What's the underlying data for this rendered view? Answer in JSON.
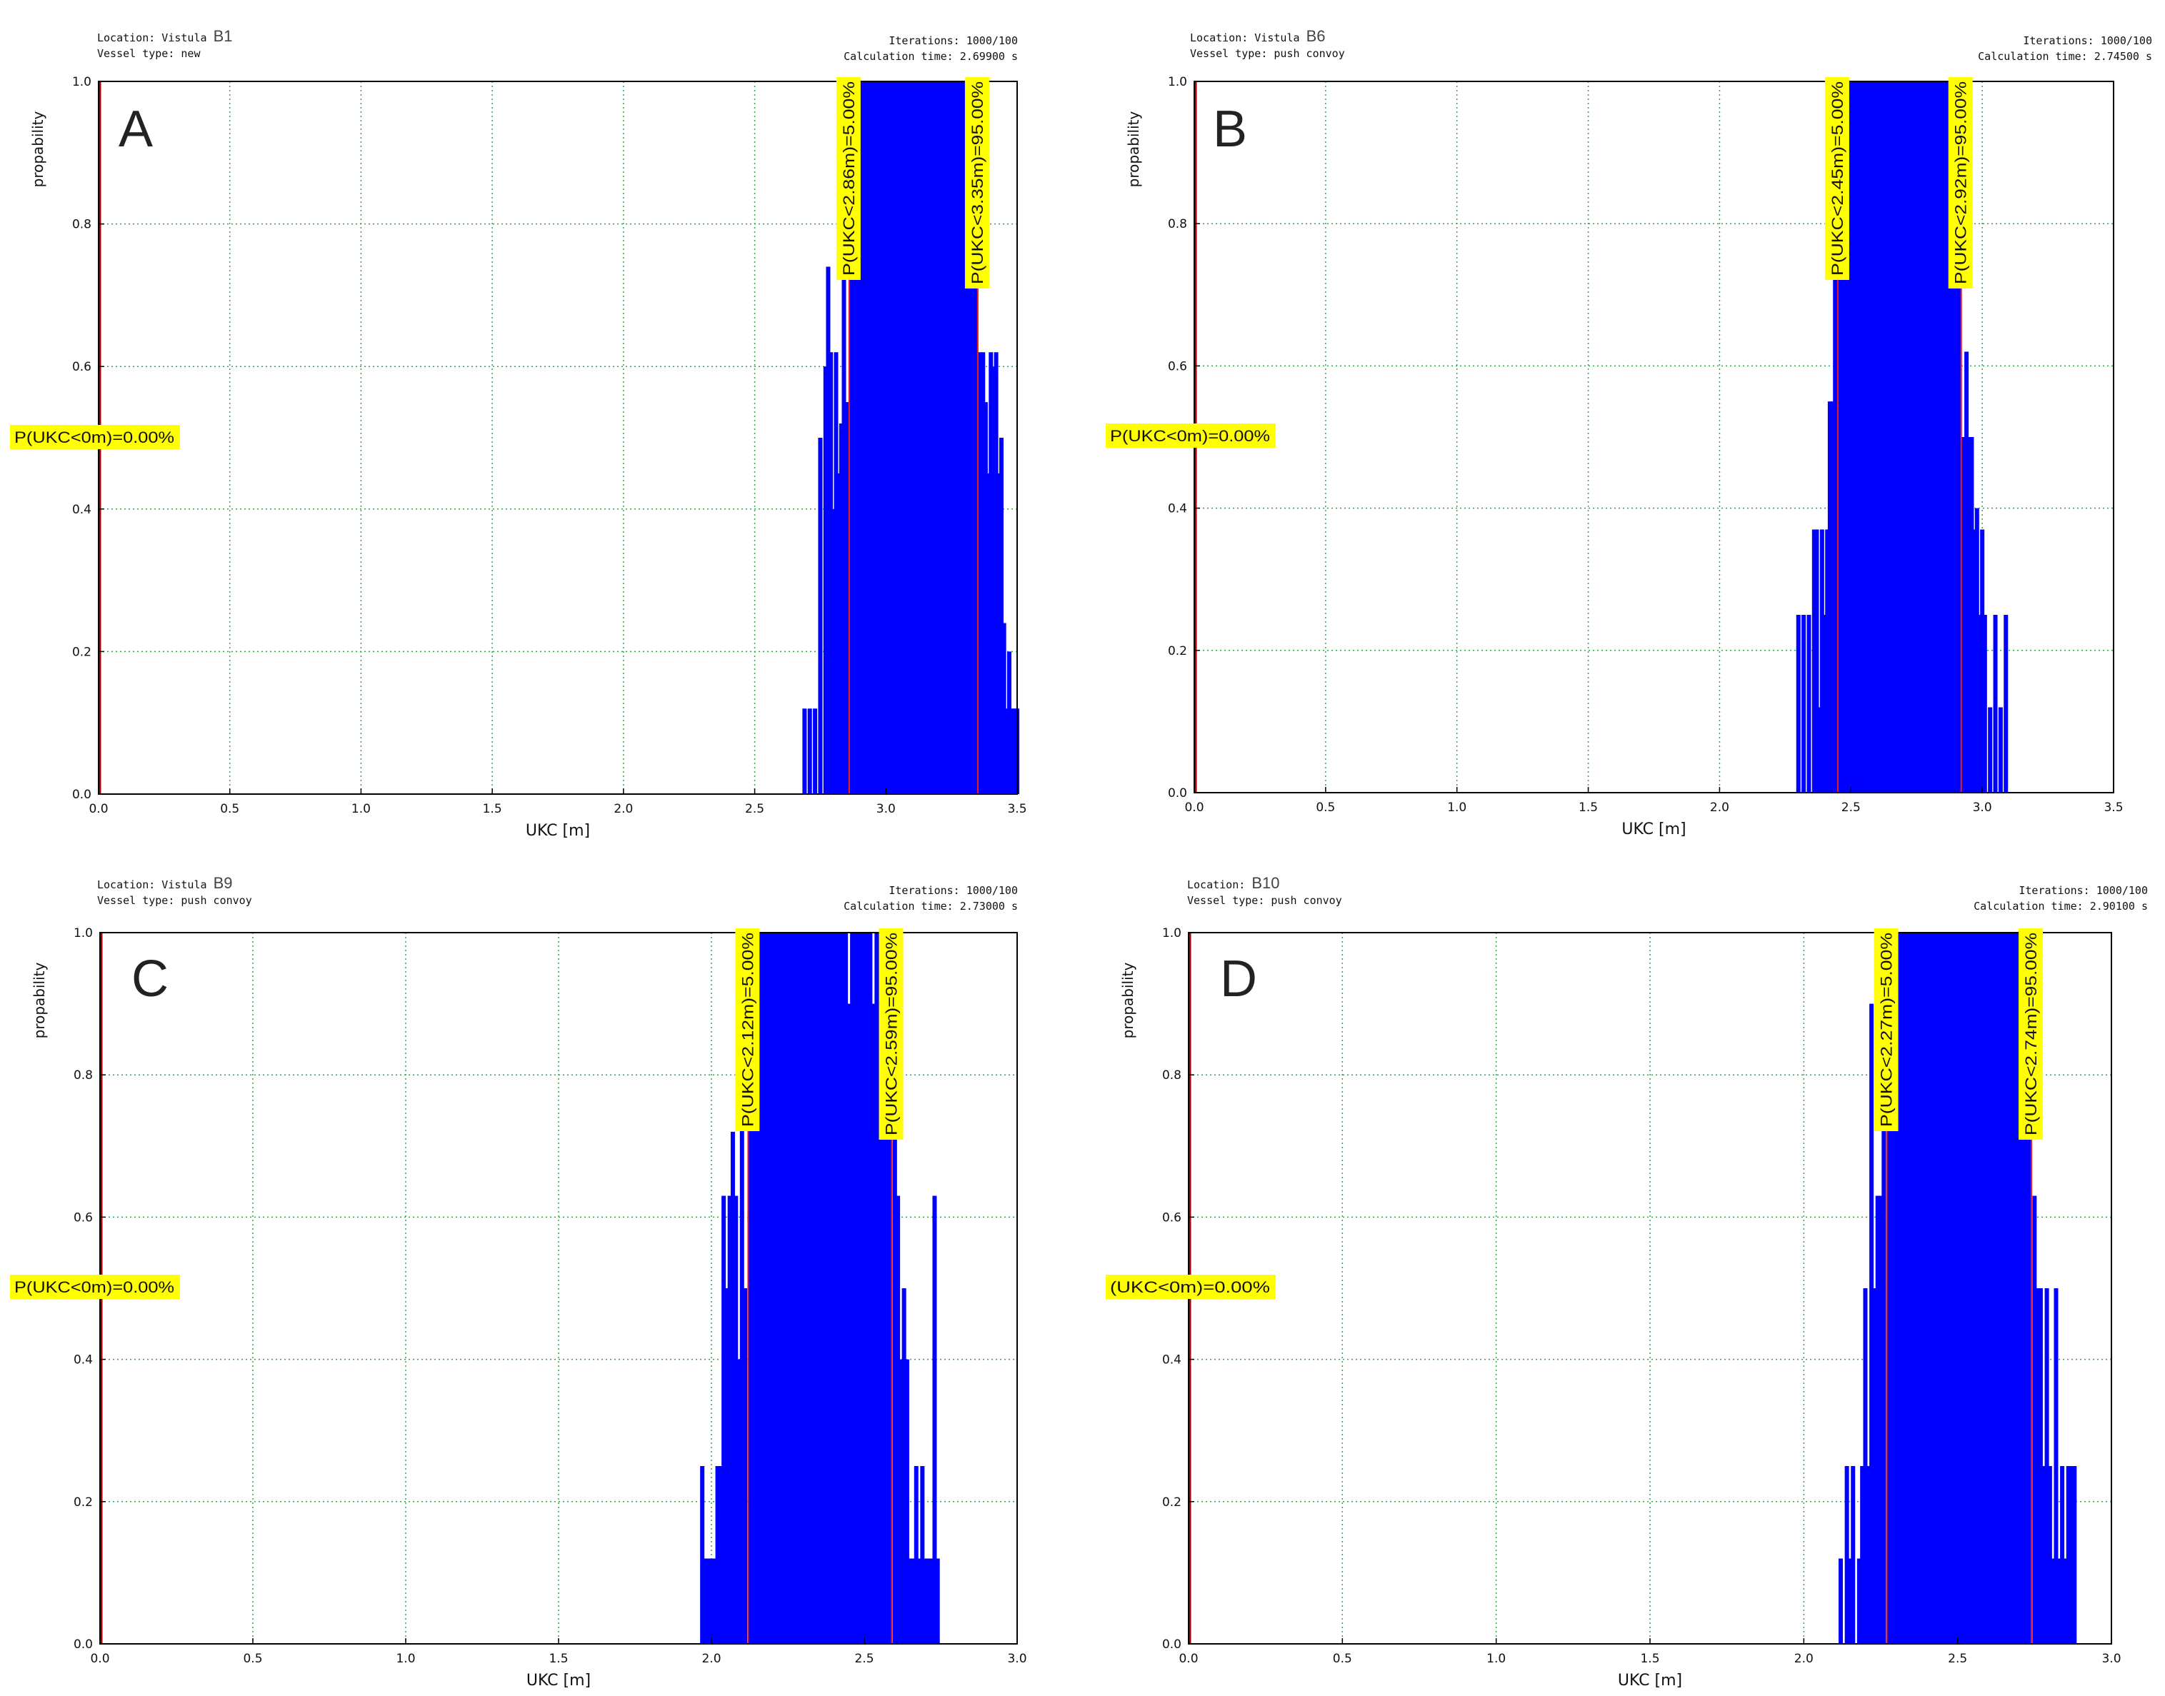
{
  "figure": {
    "panels": [
      {
        "letter": "A",
        "location_label": "Location: Vistula",
        "location_code": "B1",
        "vessel_line": "Vessel type: new",
        "iterations_line": "Iterations: 1000/100",
        "calc_line": "Calculation time: 2.69900 s",
        "p_zero_label": "P(UKC<0m)=0.00%",
        "p5_label": "P(UKC<2.86m)=5.00%",
        "p95_label": "P(UKC<3.35m)=95.00%"
      },
      {
        "letter": "B",
        "location_label": "Location: Vistula",
        "location_code": "B6",
        "vessel_line": "Vessel type: push convoy",
        "iterations_line": "Iterations: 1000/100",
        "calc_line": "Calculation time: 2.74500 s",
        "p_zero_label": "P(UKC<0m)=0.00%",
        "p5_label": "P(UKC<2.45m)=5.00%",
        "p95_label": "P(UKC<2.92m)=95.00%"
      },
      {
        "letter": "C",
        "location_label": "Location: Vistula",
        "location_code": "B9",
        "vessel_line": "Vessel type: push convoy",
        "iterations_line": "Iterations: 1000/100",
        "calc_line": "Calculation time: 2.73000 s",
        "p_zero_label": "P(UKC<0m)=0.00%",
        "p5_label": "P(UKC<2.12m)=5.00%",
        "p95_label": "P(UKC<2.59m)=95.00%"
      },
      {
        "letter": "D",
        "location_label": "Location:",
        "location_code": "B10",
        "vessel_line": "Vessel type: push convoy",
        "iterations_line": "Iterations: 1000/100",
        "calc_line": "Calculation time: 2.90100 s",
        "p_zero_label": "(UKC<0m)=0.00%",
        "p5_label": "P(UKC<2.27m)=5.00%",
        "p95_label": "P(UKC<2.74m)=95.00%"
      }
    ]
  },
  "colors": {
    "bars": "#0000ff",
    "percentile_line": "#e8201c",
    "zero_line": "#b00000",
    "grid": "#2ea84a",
    "label_bg": "#ffff00"
  },
  "chart_data": [
    {
      "type": "bar",
      "panel": "A",
      "xlabel": "UKC [m]",
      "ylabel": "propability",
      "xlim": [
        0,
        3.5
      ],
      "ylim": [
        0,
        1
      ],
      "xticks": [
        "0.0",
        "0.5",
        "1.0",
        "1.5",
        "2.0",
        "2.5",
        "3.0",
        "3.5"
      ],
      "yticks": [
        "0.0",
        "0.2",
        "0.4",
        "0.6",
        "0.8",
        "1.0"
      ],
      "grid": true,
      "percentiles": {
        "p0": 0,
        "p5": 2.86,
        "p95": 3.35
      },
      "histogram": {
        "x": [
          2.69,
          2.71,
          2.73,
          2.75,
          2.77,
          2.78,
          2.79,
          2.8,
          2.81,
          2.82,
          2.83,
          2.84,
          2.85,
          3.36,
          3.37,
          3.38,
          3.39,
          3.4,
          3.41,
          3.42,
          3.43,
          3.44,
          3.45,
          3.46,
          3.47,
          3.48,
          3.49,
          3.5
        ],
        "values": [
          0.12,
          0.12,
          0.12,
          0.5,
          0.6,
          0.74,
          0.62,
          0.4,
          0.62,
          0.45,
          0.52,
          0.8,
          0.55,
          0.62,
          0.62,
          0.55,
          0.45,
          0.62,
          0.6,
          0.62,
          0.45,
          0.5,
          0.24,
          0.12,
          0.2,
          0.12,
          0.12,
          0.12
        ]
      },
      "histogram_core_range": [
        2.86,
        3.35
      ],
      "core_value": 1.0
    },
    {
      "type": "bar",
      "panel": "B",
      "xlabel": "UKC [m]",
      "ylabel": "propability",
      "xlim": [
        0,
        3.5
      ],
      "ylim": [
        0,
        1
      ],
      "xticks": [
        "0.0",
        "0.5",
        "1.0",
        "1.5",
        "2.0",
        "2.5",
        "3.0",
        "3.5"
      ],
      "yticks": [
        "0.0",
        "0.2",
        "0.4",
        "0.6",
        "0.8",
        "1.0"
      ],
      "grid": true,
      "percentiles": {
        "p0": 0,
        "p5": 2.45,
        "p95": 2.92
      },
      "histogram": {
        "x": [
          2.3,
          2.32,
          2.34,
          2.36,
          2.37,
          2.38,
          2.39,
          2.4,
          2.41,
          2.42,
          2.43,
          2.44,
          2.93,
          2.94,
          2.95,
          2.96,
          2.97,
          2.98,
          2.99,
          3.0,
          3.01,
          3.03,
          3.05,
          3.07,
          3.09
        ],
        "values": [
          0.25,
          0.25,
          0.25,
          0.37,
          0.37,
          0.12,
          0.37,
          0.25,
          0.37,
          0.55,
          0.55,
          0.74,
          0.5,
          0.62,
          0.5,
          0.5,
          0.37,
          0.4,
          0.25,
          0.37,
          0.25,
          0.12,
          0.25,
          0.12,
          0.25
        ]
      },
      "histogram_core_range": [
        2.45,
        2.92
      ],
      "core_value": 1.0
    },
    {
      "type": "bar",
      "panel": "C",
      "xlabel": "UKC [m]",
      "ylabel": "propability",
      "xlim": [
        0,
        3.0
      ],
      "ylim": [
        0,
        1
      ],
      "xticks": [
        "0.0",
        "0.5",
        "1.0",
        "1.5",
        "2.0",
        "2.5",
        "3.0"
      ],
      "yticks": [
        "0.0",
        "0.2",
        "0.4",
        "0.6",
        "0.8",
        "1.0"
      ],
      "grid": true,
      "percentiles": {
        "p0": 0,
        "p5": 2.12,
        "p95": 2.59
      },
      "histogram": {
        "x": [
          1.97,
          1.98,
          1.99,
          2.0,
          2.01,
          2.02,
          2.03,
          2.04,
          2.05,
          2.06,
          2.07,
          2.08,
          2.09,
          2.1,
          2.11,
          2.6,
          2.61,
          2.62,
          2.63,
          2.64,
          2.65,
          2.66,
          2.67,
          2.68,
          2.69,
          2.7,
          2.71,
          2.72,
          2.73,
          2.74
        ],
        "values": [
          0.25,
          0.12,
          0.12,
          0.12,
          0.12,
          0.25,
          0.25,
          0.63,
          0.5,
          0.63,
          0.72,
          0.63,
          0.4,
          0.75,
          0.5,
          0.75,
          0.63,
          0.4,
          0.5,
          0.4,
          0.12,
          0.12,
          0.25,
          0.12,
          0.25,
          0.12,
          0.12,
          0.12,
          0.63,
          0.12
        ],
        "white_gaps": [
          2.45,
          2.53
        ]
      },
      "histogram_core_range": [
        2.12,
        2.59
      ],
      "core_value": 1.0
    },
    {
      "type": "bar",
      "panel": "D",
      "xlabel": "UKC [m]",
      "ylabel": "propability",
      "xlim": [
        0,
        3.0
      ],
      "ylim": [
        0,
        1
      ],
      "xticks": [
        "0.0",
        "0.5",
        "1.0",
        "1.5",
        "2.0",
        "2.5",
        "3.0"
      ],
      "yticks": [
        "0.0",
        "0.2",
        "0.4",
        "0.6",
        "0.8",
        "1.0"
      ],
      "grid": true,
      "percentiles": {
        "p0": 0,
        "p5": 2.27,
        "p95": 2.74
      },
      "histogram": {
        "x": [
          2.12,
          2.14,
          2.15,
          2.16,
          2.18,
          2.19,
          2.2,
          2.21,
          2.22,
          2.23,
          2.24,
          2.25,
          2.26,
          2.75,
          2.76,
          2.77,
          2.78,
          2.79,
          2.8,
          2.81,
          2.82,
          2.83,
          2.84,
          2.85,
          2.86,
          2.87,
          2.88
        ],
        "values": [
          0.12,
          0.25,
          0.12,
          0.25,
          0.12,
          0.25,
          0.5,
          0.25,
          0.9,
          0.5,
          0.63,
          0.63,
          0.9,
          0.63,
          0.5,
          0.5,
          0.25,
          0.5,
          0.25,
          0.12,
          0.5,
          0.12,
          0.25,
          0.12,
          0.25,
          0.25,
          0.25
        ]
      },
      "histogram_core_range": [
        2.27,
        2.74
      ],
      "core_value": 1.0
    }
  ]
}
